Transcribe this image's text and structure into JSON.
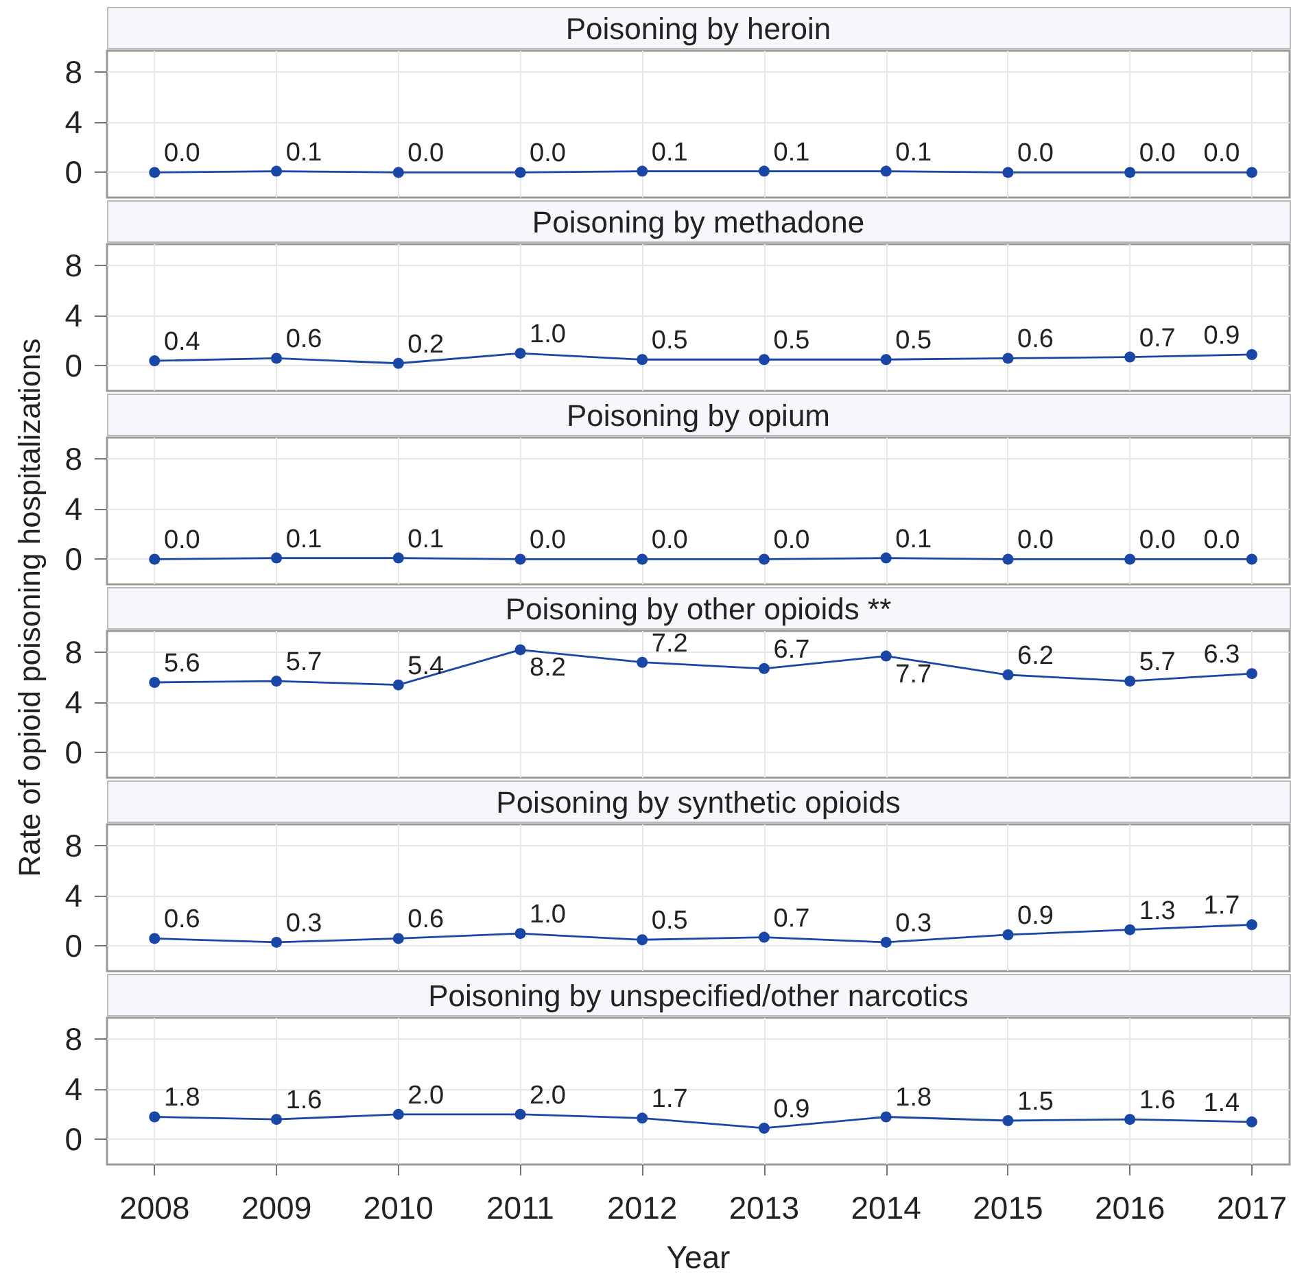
{
  "chart_data": [
    {
      "type": "line",
      "title": "Poisoning by heroin",
      "x": [
        2008,
        2009,
        2010,
        2011,
        2012,
        2013,
        2014,
        2015,
        2016,
        2017
      ],
      "values": [
        0.0,
        0.1,
        0.0,
        0.0,
        0.1,
        0.1,
        0.1,
        0.0,
        0.0,
        0.0
      ],
      "value_labels": [
        "0.0",
        "0.1",
        "0.0",
        "0.0",
        "0.1",
        "0.1",
        "0.1",
        "0.0",
        "0.0",
        "0.0"
      ],
      "color": "#1a47a5",
      "xlim": [
        2007.61,
        2017.31
      ],
      "xticks": [
        2008,
        2009,
        2010,
        2011,
        2012,
        2013,
        2014,
        2015,
        2016,
        2017
      ],
      "ylim": [
        -2,
        9.7
      ],
      "yticks": [
        0,
        4,
        8
      ],
      "grid": true,
      "marker": "circle",
      "line_style": "solid",
      "tick_labels": "y"
    },
    {
      "type": "line",
      "title": "Poisoning by methadone",
      "x": [
        2008,
        2009,
        2010,
        2011,
        2012,
        2013,
        2014,
        2015,
        2016,
        2017
      ],
      "values": [
        0.4,
        0.6,
        0.2,
        1.0,
        0.5,
        0.5,
        0.5,
        0.6,
        0.7,
        0.9
      ],
      "value_labels": [
        "0.4",
        "0.6",
        "0.2",
        "1.0",
        "0.5",
        "0.5",
        "0.5",
        "0.6",
        "0.7",
        "0.9"
      ],
      "color": "#1a47a5",
      "xlim": [
        2007.61,
        2017.31
      ],
      "xticks": [
        2008,
        2009,
        2010,
        2011,
        2012,
        2013,
        2014,
        2015,
        2016,
        2017
      ],
      "ylim": [
        -2,
        9.7
      ],
      "yticks": [
        0,
        4,
        8
      ],
      "grid": true,
      "marker": "circle",
      "line_style": "solid",
      "tick_labels": "y"
    },
    {
      "type": "line",
      "title": "Poisoning by opium",
      "x": [
        2008,
        2009,
        2010,
        2011,
        2012,
        2013,
        2014,
        2015,
        2016,
        2017
      ],
      "values": [
        0.0,
        0.1,
        0.1,
        0.0,
        0.0,
        0.0,
        0.1,
        0.0,
        0.0,
        0.0
      ],
      "value_labels": [
        "0.0",
        "0.1",
        "0.1",
        "0.0",
        "0.0",
        "0.0",
        "0.1",
        "0.0",
        "0.0",
        "0.0"
      ],
      "color": "#1a47a5",
      "xlim": [
        2007.61,
        2017.31
      ],
      "xticks": [
        2008,
        2009,
        2010,
        2011,
        2012,
        2013,
        2014,
        2015,
        2016,
        2017
      ],
      "ylim": [
        -2,
        9.7
      ],
      "yticks": [
        0,
        4,
        8
      ],
      "grid": true,
      "marker": "circle",
      "line_style": "solid",
      "tick_labels": "y"
    },
    {
      "type": "line",
      "title": "Poisoning by other opioids **",
      "ylabel": "Rate of opioid poisoning hospitalizations",
      "x": [
        2008,
        2009,
        2010,
        2011,
        2012,
        2013,
        2014,
        2015,
        2016,
        2017
      ],
      "values": [
        5.6,
        5.7,
        5.4,
        8.2,
        7.2,
        6.7,
        7.7,
        6.2,
        5.7,
        6.3
      ],
      "value_labels": [
        "5.6",
        "5.7",
        "5.4",
        "8.2",
        "7.2",
        "6.7",
        "7.7",
        "6.2",
        "5.7",
        "6.3"
      ],
      "color": "#1a47a5",
      "xlim": [
        2007.61,
        2017.31
      ],
      "xticks": [
        2008,
        2009,
        2010,
        2011,
        2012,
        2013,
        2014,
        2015,
        2016,
        2017
      ],
      "ylim": [
        -2,
        9.7
      ],
      "yticks": [
        0,
        4,
        8
      ],
      "grid": true,
      "marker": "circle",
      "line_style": "solid",
      "tick_labels": "y"
    },
    {
      "type": "line",
      "title": "Poisoning by synthetic opioids",
      "x": [
        2008,
        2009,
        2010,
        2011,
        2012,
        2013,
        2014,
        2015,
        2016,
        2017
      ],
      "values": [
        0.6,
        0.3,
        0.6,
        1.0,
        0.5,
        0.7,
        0.3,
        0.9,
        1.3,
        1.7
      ],
      "value_labels": [
        "0.6",
        "0.3",
        "0.6",
        "1.0",
        "0.5",
        "0.7",
        "0.3",
        "0.9",
        "1.3",
        "1.7"
      ],
      "color": "#1a47a5",
      "xlim": [
        2007.61,
        2017.31
      ],
      "xticks": [
        2008,
        2009,
        2010,
        2011,
        2012,
        2013,
        2014,
        2015,
        2016,
        2017
      ],
      "ylim": [
        -2,
        9.7
      ],
      "yticks": [
        0,
        4,
        8
      ],
      "grid": true,
      "marker": "circle",
      "line_style": "solid",
      "tick_labels": "y"
    },
    {
      "type": "line",
      "title": "Poisoning by unspecified/other narcotics",
      "xlabel": "Year",
      "x": [
        2008,
        2009,
        2010,
        2011,
        2012,
        2013,
        2014,
        2015,
        2016,
        2017
      ],
      "values": [
        1.8,
        1.6,
        2.0,
        2.0,
        1.7,
        0.9,
        1.8,
        1.5,
        1.6,
        1.4
      ],
      "value_labels": [
        "1.8",
        "1.6",
        "2.0",
        "2.0",
        "1.7",
        "0.9",
        "1.8",
        "1.5",
        "1.6",
        "1.4"
      ],
      "color": "#1a47a5",
      "xlim": [
        2007.61,
        2017.31
      ],
      "xticks": [
        2008,
        2009,
        2010,
        2011,
        2012,
        2013,
        2014,
        2015,
        2016,
        2017
      ],
      "ylim": [
        -2,
        9.7
      ],
      "yticks": [
        0,
        4,
        8
      ],
      "grid": true,
      "marker": "circle",
      "line_style": "solid"
    }
  ]
}
